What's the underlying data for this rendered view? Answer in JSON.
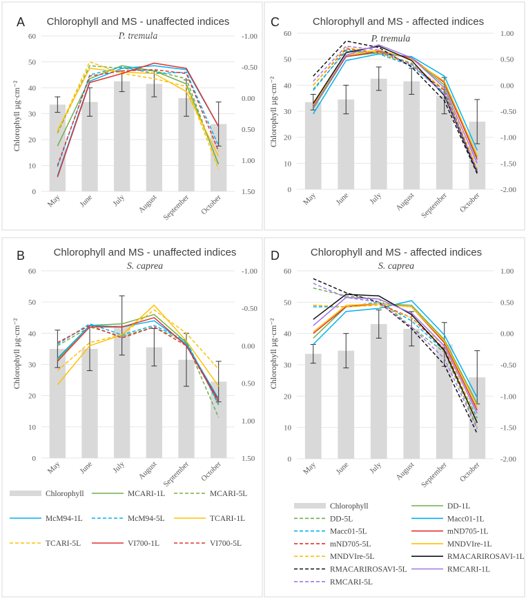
{
  "figure": {
    "ylabel": "Chlorophyll µg·cm⁻²",
    "months": [
      "May",
      "June",
      "July",
      "August",
      "September",
      "October"
    ],
    "left_axis_ticks": [
      "0",
      "10",
      "20",
      "30",
      "40",
      "50",
      "60"
    ],
    "right_axis_ticks_AC": [
      "1.50",
      "1.00",
      "0.50",
      "0.00",
      "-0.50",
      "-1.00"
    ],
    "right_axis_ticks_BD": [
      "1.50",
      "1.00",
      "0.50",
      "0.00",
      "-0.50",
      "-1.00"
    ],
    "right_axis_ticks_CD": [
      "-2.00",
      "-1.50",
      "-1.00",
      "-0.50",
      "0.00",
      "0.50",
      "1.00"
    ],
    "colors": {
      "chlorophyll": "#d9d9d9",
      "green": "#70ad47",
      "blue": "#00b0f0",
      "red": "#e03030",
      "yellow": "#ffc000",
      "black": "#111111",
      "purple": "#a274e8"
    }
  },
  "legend_left": {
    "items": [
      {
        "label": "Chlorophyll",
        "color": "#d9d9d9",
        "style": "bar"
      },
      {
        "label": "MCARI-1L",
        "color": "#70ad47",
        "style": "solid"
      },
      {
        "label": "MCARI-5L",
        "color": "#70ad47",
        "style": "dash"
      },
      {
        "label": "McM94-1L",
        "color": "#00b0f0",
        "style": "solid"
      },
      {
        "label": "McM94-5L",
        "color": "#00b0f0",
        "style": "dash"
      },
      {
        "label": "TCARI-1L",
        "color": "#ffc000",
        "style": "solid"
      },
      {
        "label": "TCARI-5L",
        "color": "#ffc000",
        "style": "dash"
      },
      {
        "label": "VI700-1L",
        "color": "#e03030",
        "style": "solid"
      },
      {
        "label": "VI700-5L",
        "color": "#e03030",
        "style": "dash"
      }
    ]
  },
  "legend_right": {
    "items": [
      {
        "label": "Chlorophyll",
        "color": "#d9d9d9",
        "style": "bar"
      },
      {
        "label": "DD-1L",
        "color": "#70ad47",
        "style": "solid"
      },
      {
        "label": "DD-5L",
        "color": "#70ad47",
        "style": "dash"
      },
      {
        "label": "Macc01-1L",
        "color": "#00b0f0",
        "style": "solid"
      },
      {
        "label": "Macc01-5L",
        "color": "#00b0f0",
        "style": "dash"
      },
      {
        "label": "mND705-1L",
        "color": "#e03030",
        "style": "solid"
      },
      {
        "label": "mND705-5L",
        "color": "#e03030",
        "style": "dash"
      },
      {
        "label": "MNDVIre-1L",
        "color": "#ffc000",
        "style": "solid"
      },
      {
        "label": "MNDVIre-5L",
        "color": "#ffc000",
        "style": "dash"
      },
      {
        "label": "RMACARIROSAVI-1L",
        "color": "#111111",
        "style": "solid"
      },
      {
        "label": "RMACARIROSAVI-5L",
        "color": "#111111",
        "style": "dash"
      },
      {
        "label": "RMCARI-1L",
        "color": "#a274e8",
        "style": "solid"
      },
      {
        "label": "RMCARI-5L",
        "color": "#a274e8",
        "style": "dash"
      }
    ]
  },
  "chart_data": [
    {
      "panel": "A",
      "type": "bar",
      "title": "Chlorophyll and MS - unaffected indices",
      "subtitle": "P. tremula",
      "categories": [
        "May",
        "June",
        "July",
        "August",
        "September",
        "October"
      ],
      "ylim": [
        0,
        60
      ],
      "y2lim": [
        1.5,
        -1.0
      ],
      "y2_ticks": [
        "1.50",
        "1.00",
        "0.50",
        "0.00",
        "-0.50",
        "-1.00"
      ],
      "bars": {
        "name": "Chlorophyll",
        "values": [
          33.5,
          34.5,
          42.5,
          41.5,
          36.0,
          26.0
        ],
        "errors": [
          3,
          5.5,
          4,
          5,
          7,
          8.5
        ]
      },
      "series": [
        {
          "name": "MCARI-1L",
          "color": "#70ad47",
          "dash": false,
          "values": [
            17.5,
            43.5,
            48.5,
            46.5,
            41.5,
            10.5
          ]
        },
        {
          "name": "MCARI-5L",
          "color": "#70ad47",
          "dash": true,
          "values": [
            22.5,
            48.5,
            47.5,
            46.5,
            43.5,
            10.0
          ]
        },
        {
          "name": "McM94-1L",
          "color": "#00b0f0",
          "dash": false,
          "values": [
            6.0,
            42.5,
            47.5,
            48.5,
            47.0,
            25.0
          ]
        },
        {
          "name": "McM94-5L",
          "color": "#00b0f0",
          "dash": true,
          "values": [
            9.5,
            45.0,
            48.0,
            45.5,
            46.0,
            17.5
          ]
        },
        {
          "name": "TCARI-1L",
          "color": "#ffc000",
          "dash": false,
          "values": [
            23.5,
            47.5,
            46.0,
            45.5,
            38.5,
            13.5
          ]
        },
        {
          "name": "TCARI-5L",
          "color": "#ffc000",
          "dash": true,
          "values": [
            23.0,
            50.0,
            45.5,
            43.5,
            40.5,
            8.5
          ]
        },
        {
          "name": "VI700-1L",
          "color": "#e03030",
          "dash": false,
          "values": [
            5.5,
            42.0,
            45.5,
            49.5,
            47.5,
            25.0
          ]
        },
        {
          "name": "VI700-5L",
          "color": "#e03030",
          "dash": true,
          "values": [
            10.0,
            44.5,
            46.5,
            47.0,
            45.5,
            15.5
          ]
        }
      ]
    },
    {
      "panel": "C",
      "type": "bar",
      "title": "Chlorophyll and MS - affected indices",
      "subtitle": "P. tremula",
      "categories": [
        "May",
        "June",
        "July",
        "August",
        "September",
        "October"
      ],
      "ylim": [
        0,
        60
      ],
      "y2lim": [
        -2.0,
        1.0
      ],
      "y2_ticks": [
        "-2.00",
        "-1.50",
        "-1.00",
        "-0.50",
        "0.00",
        "0.50",
        "1.00"
      ],
      "bars": {
        "name": "Chlorophyll",
        "values": [
          33.5,
          34.5,
          42.5,
          41.5,
          36.0,
          26.0
        ],
        "errors": [
          3,
          5.5,
          4.5,
          5,
          7,
          8.5
        ]
      },
      "series": [
        {
          "name": "DD-1L",
          "color": "#70ad47",
          "dash": false,
          "values": [
            31.0,
            51.0,
            52.5,
            50.5,
            40.0,
            12.5
          ]
        },
        {
          "name": "DD-5L",
          "color": "#70ad47",
          "dash": true,
          "values": [
            38.5,
            53.0,
            52.5,
            48.5,
            37.0,
            7.0
          ]
        },
        {
          "name": "Macc01-1L",
          "color": "#00b0f0",
          "dash": false,
          "values": [
            29.0,
            49.5,
            52.0,
            51.0,
            43.5,
            15.0
          ]
        },
        {
          "name": "Macc01-5L",
          "color": "#00b0f0",
          "dash": true,
          "values": [
            38.0,
            53.5,
            52.0,
            47.5,
            37.0,
            7.5
          ]
        },
        {
          "name": "mND705-1L",
          "color": "#e03030",
          "dash": false,
          "values": [
            32.0,
            51.0,
            53.0,
            50.5,
            41.0,
            11.5
          ]
        },
        {
          "name": "mND705-5L",
          "color": "#e03030",
          "dash": true,
          "values": [
            40.0,
            54.0,
            52.5,
            48.0,
            38.0,
            7.0
          ]
        },
        {
          "name": "MNDVIre-1L",
          "color": "#ffc000",
          "dash": false,
          "values": [
            32.5,
            51.5,
            53.5,
            50.0,
            41.5,
            13.0
          ]
        },
        {
          "name": "MNDVIre-5L",
          "color": "#ffc000",
          "dash": true,
          "values": [
            40.0,
            54.5,
            52.5,
            48.0,
            38.5,
            8.0
          ]
        },
        {
          "name": "RMACARIROSAVI-1L",
          "color": "#111111",
          "dash": false,
          "values": [
            33.0,
            52.5,
            55.0,
            49.5,
            36.0,
            6.5
          ]
        },
        {
          "name": "RMACARIROSAVI-5L",
          "color": "#111111",
          "dash": true,
          "values": [
            43.5,
            57.0,
            54.5,
            47.0,
            34.0,
            6.0
          ]
        },
        {
          "name": "RMCARI-1L",
          "color": "#a274e8",
          "dash": false,
          "values": [
            31.5,
            51.5,
            55.5,
            50.5,
            39.0,
            10.0
          ]
        },
        {
          "name": "RMCARI-5L",
          "color": "#a274e8",
          "dash": true,
          "values": [
            41.5,
            55.0,
            53.5,
            48.0,
            36.5,
            7.0
          ]
        }
      ]
    },
    {
      "panel": "B",
      "type": "bar",
      "title": "Chlorophyll and MS - unaffected indices",
      "subtitle": "S. caprea",
      "categories": [
        "May",
        "June",
        "July",
        "August",
        "September",
        "October"
      ],
      "ylim": [
        0,
        60
      ],
      "y2lim": [
        1.5,
        -1.0
      ],
      "y2_ticks": [
        "1.50",
        "1.00",
        "0.50",
        "0.00",
        "-0.50",
        "-1.00"
      ],
      "bars": {
        "name": "Chlorophyll",
        "values": [
          35.0,
          35.0,
          42.5,
          35.5,
          31.5,
          24.5
        ],
        "errors": [
          6,
          7,
          9.5,
          6,
          8.5,
          6.5
        ]
      },
      "series": [
        {
          "name": "MCARI-1L",
          "color": "#70ad47",
          "dash": false,
          "values": [
            31.5,
            42.5,
            43.0,
            46.0,
            37.0,
            17.5
          ]
        },
        {
          "name": "MCARI-5L",
          "color": "#70ad47",
          "dash": true,
          "values": [
            36.0,
            42.0,
            39.0,
            42.0,
            37.0,
            13.0
          ]
        },
        {
          "name": "McM94-1L",
          "color": "#00b0f0",
          "dash": false,
          "values": [
            32.0,
            42.5,
            42.0,
            44.0,
            36.5,
            19.0
          ]
        },
        {
          "name": "McM94-5L",
          "color": "#00b0f0",
          "dash": true,
          "values": [
            36.5,
            43.0,
            39.5,
            42.5,
            37.5,
            17.0
          ]
        },
        {
          "name": "TCARI-1L",
          "color": "#ffc000",
          "dash": false,
          "values": [
            23.5,
            36.0,
            39.5,
            49.0,
            37.5,
            23.0
          ]
        },
        {
          "name": "TCARI-5L",
          "color": "#ffc000",
          "dash": true,
          "values": [
            28.0,
            37.0,
            39.5,
            47.5,
            40.0,
            28.5
          ]
        },
        {
          "name": "VI700-1L",
          "color": "#e03030",
          "dash": false,
          "values": [
            31.0,
            42.0,
            42.0,
            45.0,
            36.0,
            18.5
          ]
        },
        {
          "name": "VI700-5L",
          "color": "#e03030",
          "dash": true,
          "values": [
            37.0,
            42.5,
            38.5,
            42.0,
            36.0,
            18.0
          ]
        }
      ]
    },
    {
      "panel": "D",
      "type": "bar",
      "title": "Chlorophyll and MS - affected indices",
      "subtitle": "S. caprea",
      "categories": [
        "May",
        "June",
        "July",
        "August",
        "September",
        "October"
      ],
      "ylim": [
        0,
        60
      ],
      "y2lim": [
        -2.0,
        1.0
      ],
      "y2_ticks": [
        "-2.00",
        "-1.50",
        "-1.00",
        "-0.50",
        "0.00",
        "0.50",
        "1.00"
      ],
      "bars": {
        "name": "Chlorophyll",
        "values": [
          33.5,
          34.5,
          43.0,
          41.5,
          36.5,
          26.0
        ],
        "errors": [
          3,
          5.5,
          4.5,
          5.5,
          7,
          8.5
        ]
      },
      "series": [
        {
          "name": "DD-1L",
          "color": "#70ad47",
          "dash": false,
          "values": [
            38.5,
            48.5,
            49.5,
            49.0,
            38.0,
            17.5
          ]
        },
        {
          "name": "DD-5L",
          "color": "#70ad47",
          "dash": true,
          "values": [
            54.5,
            52.0,
            51.0,
            42.0,
            34.0,
            10.0
          ]
        },
        {
          "name": "Macc01-1L",
          "color": "#00b0f0",
          "dash": false,
          "values": [
            36.5,
            47.0,
            48.0,
            50.5,
            39.5,
            19.5
          ]
        },
        {
          "name": "Macc01-5L",
          "color": "#00b0f0",
          "dash": true,
          "values": [
            48.5,
            48.5,
            50.0,
            44.0,
            34.5,
            13.0
          ]
        },
        {
          "name": "mND705-1L",
          "color": "#e03030",
          "dash": false,
          "values": [
            40.0,
            48.5,
            49.5,
            48.5,
            37.0,
            15.5
          ]
        },
        {
          "name": "mND705-5L",
          "color": "#e03030",
          "dash": true,
          "values": [
            49.0,
            48.5,
            49.5,
            45.0,
            35.0,
            11.5
          ]
        },
        {
          "name": "MNDVIre-1L",
          "color": "#ffc000",
          "dash": false,
          "values": [
            40.5,
            49.0,
            49.5,
            48.5,
            37.5,
            16.5
          ]
        },
        {
          "name": "MNDVIre-5L",
          "color": "#ffc000",
          "dash": true,
          "values": [
            49.0,
            48.5,
            49.0,
            45.0,
            36.0,
            12.0
          ]
        },
        {
          "name": "RMACARIROSAVI-1L",
          "color": "#111111",
          "dash": false,
          "values": [
            44.5,
            52.5,
            52.0,
            46.0,
            34.5,
            11.5
          ]
        },
        {
          "name": "RMACARIROSAVI-5L",
          "color": "#111111",
          "dash": true,
          "values": [
            57.5,
            53.0,
            50.0,
            41.5,
            30.0,
            8.0
          ]
        },
        {
          "name": "RMCARI-1L",
          "color": "#a274e8",
          "dash": false,
          "values": [
            42.5,
            51.5,
            51.0,
            46.5,
            36.0,
            14.5
          ]
        },
        {
          "name": "RMCARI-5L",
          "color": "#a274e8",
          "dash": true,
          "values": [
            56.0,
            51.5,
            50.0,
            42.0,
            32.0,
            9.5
          ]
        }
      ]
    }
  ]
}
